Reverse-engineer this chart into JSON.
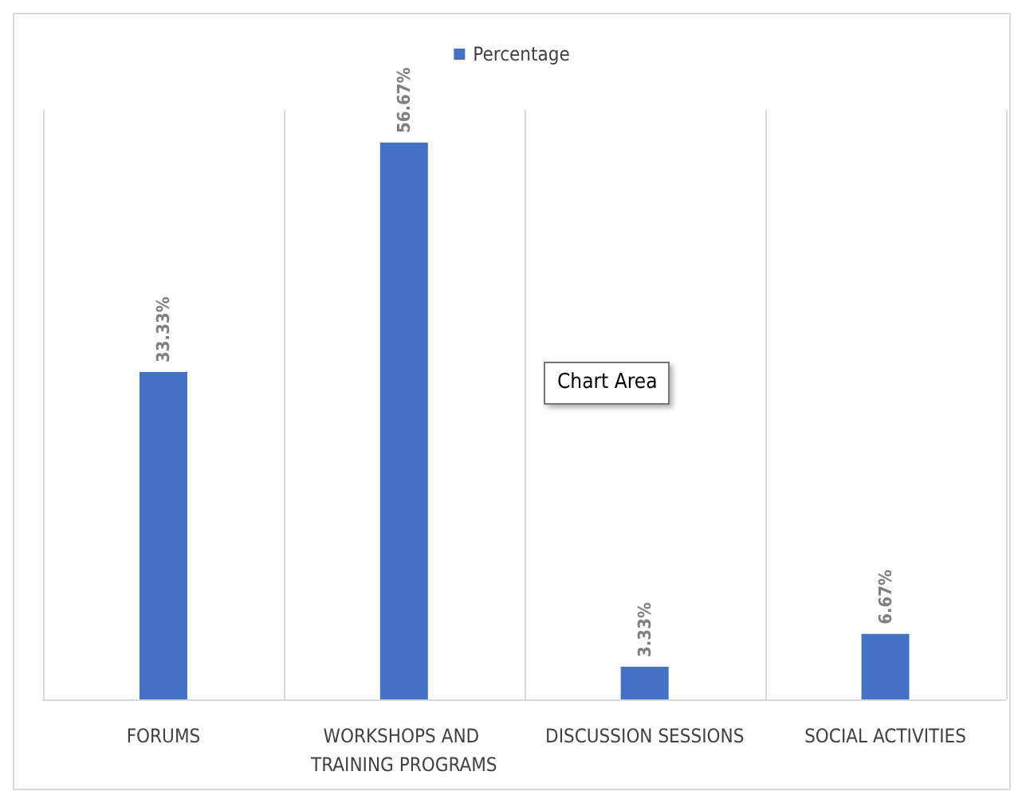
{
  "chart_data": {
    "type": "bar",
    "categories": [
      "FORUMS",
      "WORKSHOPS AND TRAINING PROGRAMS",
      "DISCUSSION SESSIONS",
      "SOCIAL ACTIVITIES"
    ],
    "series": [
      {
        "name": "Percentage",
        "color": "#4472c4",
        "values": [
          33.33,
          56.67,
          3.33,
          6.67
        ],
        "value_labels": [
          "33.33%",
          "56.67%",
          "3.33%",
          "6.67%"
        ]
      }
    ],
    "grid": "x",
    "legend": "top",
    "annotations": [
      "Chart Area"
    ]
  }
}
